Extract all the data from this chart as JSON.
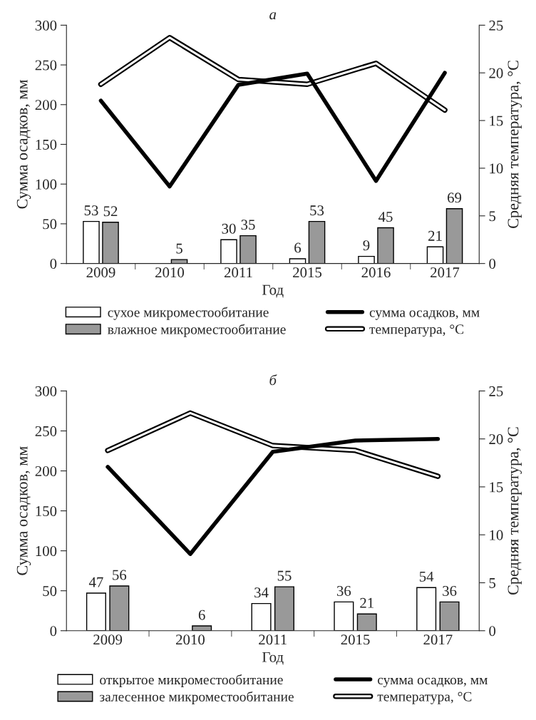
{
  "chart_data": [
    {
      "type": "bar",
      "title": "а",
      "xlabel": "Год",
      "ylabel": "Сумма осадков, мм",
      "y2label": "Средняя температура, °C",
      "categories": [
        "2009",
        "2010",
        "2011",
        "2015",
        "2016",
        "2017"
      ],
      "series": [
        {
          "name": "сухое микроместообитание",
          "color": "#ffffff",
          "values": [
            53,
            null,
            30,
            6,
            9,
            21
          ],
          "value_labels": [
            "53",
            null,
            "30",
            "6",
            "9",
            "21"
          ]
        },
        {
          "name": "влажное микроместообитание",
          "color": "#999999",
          "values": [
            52,
            5,
            35,
            53,
            45,
            69
          ],
          "value_labels": [
            "52",
            "5",
            "35",
            "53",
            "45",
            "69"
          ]
        },
        {
          "name": "сумма осадков, мм",
          "type": "line",
          "color": "#000000",
          "values": [
            205,
            97,
            225,
            239,
            104,
            240
          ]
        },
        {
          "name": "температура, °C",
          "type": "line",
          "color": "#000000",
          "axis": "y2",
          "values": [
            18.8,
            23.7,
            19.3,
            18.8,
            21.0,
            16.1
          ]
        }
      ],
      "ylim": [
        0,
        300
      ],
      "yticks": [
        0,
        50,
        100,
        150,
        200,
        250,
        300
      ],
      "y2lim": [
        0,
        25
      ],
      "y2ticks": [
        0,
        5,
        10,
        15,
        20,
        25
      ],
      "legend": "bottom",
      "grid": false
    },
    {
      "type": "bar",
      "title": "б",
      "xlabel": "Год",
      "ylabel": "Сумма осадков, мм",
      "y2label": "Средняя температура, °C",
      "categories": [
        "2009",
        "2010",
        "2011",
        "2015",
        "2017"
      ],
      "series": [
        {
          "name": "открытое микроместообитание",
          "color": "#ffffff",
          "values": [
            47,
            null,
            34,
            36,
            54
          ],
          "value_labels": [
            "47",
            null,
            "34",
            "36",
            "54"
          ]
        },
        {
          "name": "залесенное микроместообитание",
          "color": "#999999",
          "values": [
            56,
            6,
            55,
            21,
            36
          ],
          "value_labels": [
            "56",
            "6",
            "55",
            "21",
            "36"
          ]
        },
        {
          "name": "сумма осадков, мм",
          "type": "line",
          "color": "#000000",
          "values": [
            205,
            96,
            224,
            238,
            240
          ]
        },
        {
          "name": "температура, °C",
          "type": "line",
          "color": "#000000",
          "axis": "y2",
          "values": [
            18.8,
            22.7,
            19.3,
            18.8,
            16.1
          ]
        }
      ],
      "ylim": [
        0,
        300
      ],
      "yticks": [
        0,
        50,
        100,
        150,
        200,
        250,
        300
      ],
      "y2lim": [
        0,
        25
      ],
      "y2ticks": [
        0,
        5,
        10,
        15,
        20,
        25
      ],
      "legend": "bottom",
      "grid": false
    }
  ]
}
